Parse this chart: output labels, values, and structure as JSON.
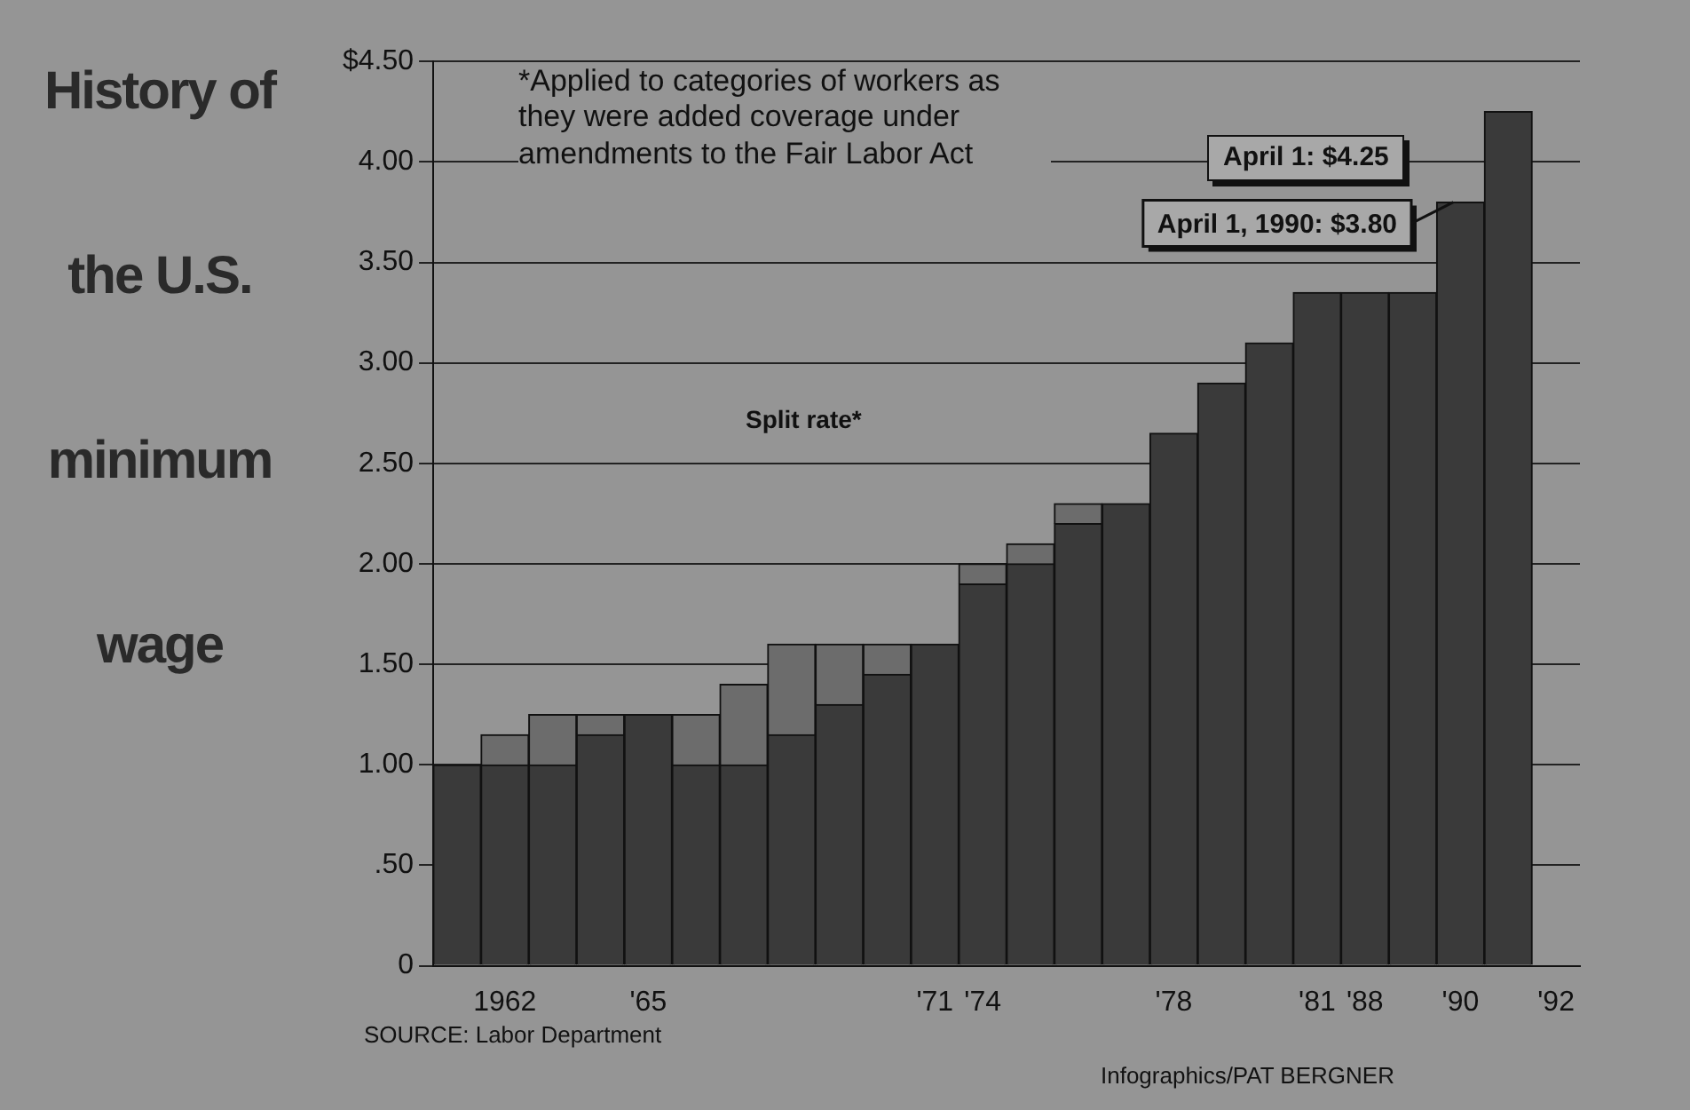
{
  "chart_data": {
    "type": "bar",
    "title": "History of the U.S. minimum wage",
    "categories": [
      null,
      "1962",
      null,
      null,
      "'65",
      null,
      null,
      null,
      null,
      null,
      "'71",
      "'74",
      null,
      null,
      null,
      "'78",
      null,
      null,
      "'81",
      "'88",
      null,
      "'90",
      null,
      "'92"
    ],
    "stacked": true,
    "series": [
      {
        "color": "#3a3a3a",
        "values": [
          1.0,
          1.0,
          1.0,
          1.15,
          1.25,
          1.0,
          1.0,
          1.15,
          1.3,
          1.45,
          1.6,
          1.9,
          2.0,
          2.2,
          2.3,
          2.65,
          2.9,
          3.1,
          3.35,
          3.35,
          3.35,
          3.8,
          4.25,
          null
        ]
      },
      {
        "color": "#6c6c6c",
        "values": [
          null,
          0.15,
          0.25,
          0.1,
          null,
          0.25,
          0.4,
          0.45,
          0.3,
          0.15,
          null,
          0.1,
          0.1,
          0.1,
          null,
          null,
          null,
          null,
          null,
          null,
          null,
          null,
          null,
          null
        ]
      }
    ],
    "ylim": [
      0,
      4.5
    ],
    "yticks": [
      {
        "value": 0,
        "label": "0"
      },
      {
        "value": 0.5,
        "label": ".50"
      },
      {
        "value": 1,
        "label": "1.00"
      },
      {
        "value": 1.5,
        "label": "1.50"
      },
      {
        "value": 2,
        "label": "2.00"
      },
      {
        "value": 2.5,
        "label": "2.50"
      },
      {
        "value": 3,
        "label": "3.00"
      },
      {
        "value": 3.5,
        "label": "3.50"
      },
      {
        "value": 4,
        "label": "4.00"
      },
      {
        "value": 4.5,
        "label": "$4.50"
      }
    ],
    "grid": "y",
    "legend": false,
    "annotations": [
      "*Applied to categories of workers as they were added coverage under amendments to the Fair Labor Act",
      "Split rate*",
      "SOURCE: Labor Department",
      "Infographics/PAT BERGNER",
      "April 1: $4.25",
      {
        "text": "April 1, 1990: $3.80",
        "x": "'90",
        "y": 3.8
      }
    ]
  }
}
